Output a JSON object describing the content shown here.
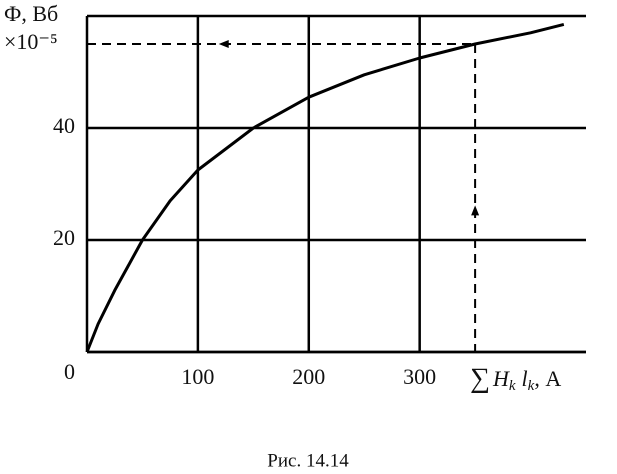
{
  "chart_data": {
    "type": "line",
    "y_label": "Ф, Вб",
    "y_multiplier": "×10⁻⁵",
    "x_label": [
      "∑",
      "H",
      "k",
      "l",
      "k",
      ", А"
    ],
    "caption": "Рис. 14.14",
    "x": [
      0,
      10,
      25,
      50,
      75,
      100,
      150,
      200,
      250,
      300,
      350,
      400,
      430
    ],
    "series": [
      {
        "color": "#000000",
        "values": [
          0,
          5,
          11,
          20,
          27,
          32.5,
          40,
          45.5,
          49.5,
          52.5,
          55,
          57,
          58.5
        ]
      }
    ],
    "xlim": [
      0,
      450
    ],
    "ylim": [
      0,
      60
    ],
    "xticks": [
      100,
      200,
      300
    ],
    "yticks": [
      0,
      20,
      40
    ],
    "grid": true,
    "reading": {
      "x": 350,
      "y": 55
    }
  }
}
